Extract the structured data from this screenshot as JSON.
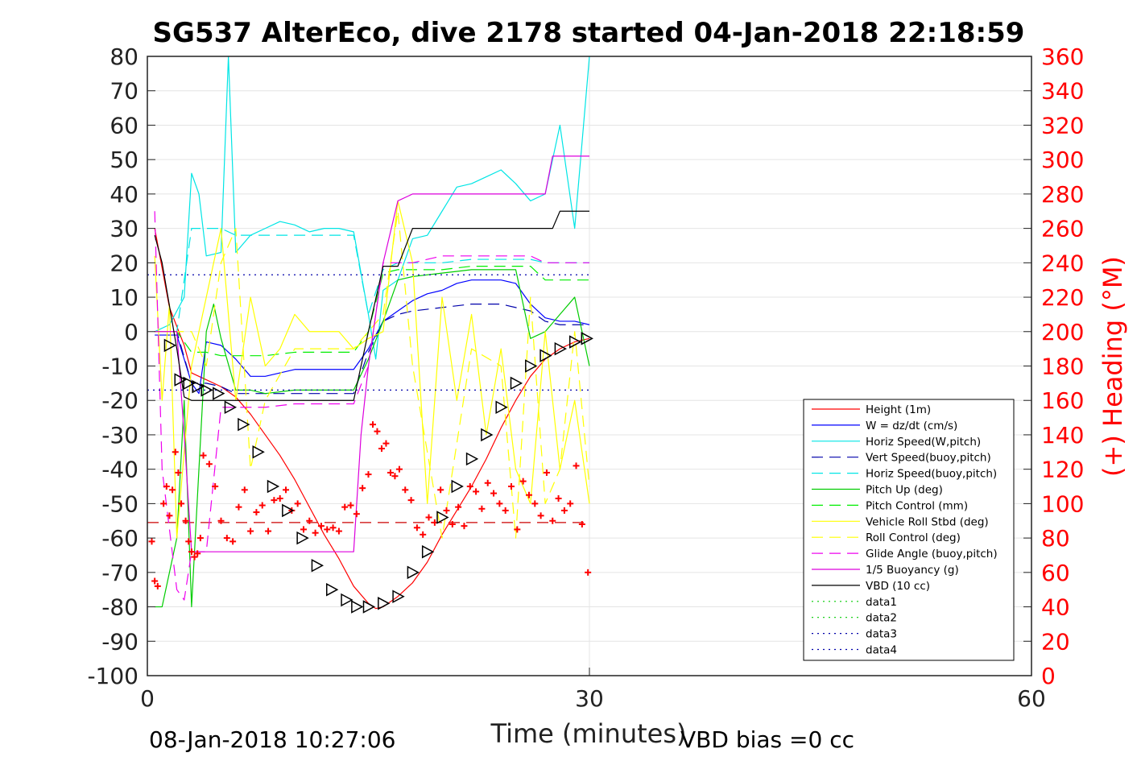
{
  "chart_data": {
    "type": "line",
    "title": "SG537 AlterEco, dive 2178 started 04-Jan-2018 22:18:59",
    "xlabel": "Time (minutes)",
    "ylabel_right": "(+) Heading (°M)",
    "xlim": [
      0,
      60
    ],
    "ylim": [
      -100,
      80
    ],
    "ylim_right": [
      0,
      360
    ],
    "x_ticks": [
      "0",
      "30",
      "60"
    ],
    "y_ticks": [
      "80",
      "70",
      "60",
      "50",
      "40",
      "30",
      "20",
      "10",
      "0",
      "-10",
      "-20",
      "-30",
      "-40",
      "-50",
      "-60",
      "-70",
      "-80",
      "-90",
      "-100"
    ],
    "y_right_ticks": [
      "360",
      "340",
      "320",
      "300",
      "280",
      "260",
      "240",
      "220",
      "200",
      "180",
      "160",
      "140",
      "120",
      "100",
      "80",
      "60",
      "40",
      "20",
      "0"
    ],
    "grid": true,
    "legend_position": "lower-right",
    "footer_left": "08-Jan-2018 10:27:06",
    "footer_right": "VBD bias =0 cc",
    "series": [
      {
        "name": "Height (1m)",
        "color": "#ff0000",
        "style": "solid",
        "x": [
          0.5,
          1.5,
          2.5,
          3,
          4,
          5,
          6,
          7,
          8,
          9,
          10,
          11,
          12,
          13,
          14,
          15,
          15.5,
          16,
          17,
          18,
          19,
          20,
          21,
          22,
          23,
          24,
          25,
          26,
          27,
          28,
          29,
          30
        ],
        "y": [
          30,
          7,
          -4,
          -12,
          -14,
          -16,
          -19,
          -24,
          -30,
          -36,
          -43,
          -51,
          -59,
          -66,
          -74,
          -79,
          -80.5,
          -80,
          -77,
          -73,
          -67,
          -59,
          -52,
          -45,
          -37,
          -28,
          -20,
          -13,
          -8,
          -5,
          -3,
          -2
        ]
      },
      {
        "name": "W = dz/dt (cm/s)",
        "color": "#0000ff",
        "style": "solid",
        "x": [
          0.5,
          2,
          3,
          3.5,
          4,
          5,
          6,
          7,
          8,
          9,
          10,
          11,
          12,
          13,
          14,
          15,
          15.5,
          16,
          17,
          18,
          19,
          20,
          21,
          22,
          23,
          24,
          25,
          26,
          27,
          28,
          29,
          30
        ],
        "y": [
          -1,
          -1,
          -15,
          -18,
          -3,
          -4,
          -8,
          -13,
          -13,
          -12,
          -11,
          -11,
          -11,
          -11,
          -11,
          -5,
          -1,
          3,
          6,
          9,
          11,
          12,
          14,
          15,
          15,
          15,
          14,
          8,
          4,
          3,
          3,
          2
        ]
      },
      {
        "name": "Horiz Speed(W,pitch)",
        "color": "#00e5e5",
        "style": "solid",
        "x": [
          0.5,
          1.5,
          2.5,
          3,
          3.5,
          4,
          5,
          5.5,
          6,
          7,
          8,
          9,
          10,
          11,
          12,
          13,
          14,
          15,
          15.5,
          16,
          17,
          18,
          19,
          20,
          21,
          22,
          23,
          24,
          25,
          26,
          27,
          28,
          29,
          30
        ],
        "y": [
          0,
          2,
          10,
          46,
          40,
          22,
          23,
          80,
          23,
          28,
          30,
          32,
          31,
          29,
          30,
          30,
          29,
          5,
          -8,
          12,
          15,
          27,
          28,
          35,
          42,
          43,
          45,
          47,
          43,
          38,
          40,
          60,
          30,
          80
        ]
      },
      {
        "name": "Vert Speed(buoy,pitch)",
        "color": "#0000aa",
        "style": "dash",
        "x": [
          0.5,
          2,
          3,
          4,
          5,
          6,
          7,
          8,
          10,
          12,
          14,
          15,
          16,
          17,
          18,
          20,
          22,
          24,
          26,
          27,
          28,
          29,
          30
        ],
        "y": [
          0,
          0,
          -15,
          -15,
          -16,
          -18,
          -18,
          -18,
          -18,
          -18,
          -18,
          -6,
          3,
          5,
          6,
          7,
          8,
          8,
          6,
          3,
          2,
          2,
          2
        ]
      },
      {
        "name": "Horiz Speed(buoy,pitch)",
        "color": "#00e5e5",
        "style": "dash",
        "x": [
          0.5,
          2,
          3,
          4,
          5,
          6,
          8,
          10,
          12,
          14,
          15,
          16,
          17,
          18,
          20,
          22,
          24,
          26,
          27,
          28,
          29,
          30
        ],
        "y": [
          0,
          0,
          30,
          30,
          30,
          28,
          28,
          28,
          28,
          28,
          5,
          18,
          20,
          20,
          20,
          21,
          21,
          21,
          20,
          20,
          20,
          20
        ]
      },
      {
        "name": "Pitch Up (deg)",
        "color": "#00cc00",
        "style": "solid",
        "x": [
          0.5,
          1,
          2,
          2.5,
          3,
          4,
          4.5,
          5,
          6,
          7,
          8,
          10,
          12,
          14,
          15,
          16,
          17,
          18,
          20,
          22,
          24,
          25,
          26,
          27,
          28,
          29,
          30
        ],
        "y": [
          -80,
          -80,
          -60,
          -20,
          -80,
          0,
          8,
          -2,
          -17,
          -17,
          -18,
          -17,
          -17,
          -17,
          -8,
          3,
          15,
          16,
          17,
          18,
          18,
          18,
          -2,
          0,
          5,
          10,
          -10
        ]
      },
      {
        "name": "Pitch Control (mm)",
        "color": "#00ee00",
        "style": "dash",
        "x": [
          0.5,
          2,
          3,
          4,
          5,
          6,
          8,
          10,
          12,
          14,
          15,
          16,
          17,
          18,
          20,
          22,
          24,
          26,
          27,
          28,
          29,
          30
        ],
        "y": [
          0,
          0,
          -6,
          -6,
          -7,
          -7,
          -7,
          -6,
          -6,
          -6,
          0,
          17,
          18,
          18,
          18,
          19,
          19,
          19,
          15,
          15,
          15,
          15
        ]
      },
      {
        "name": "Vehicle Roll Stbd (deg)",
        "color": "#ffff00",
        "style": "solid",
        "x": [
          0.5,
          1,
          1.5,
          2,
          3,
          4,
          5,
          6,
          7,
          8,
          9,
          10,
          11,
          12,
          13,
          14,
          15,
          16,
          17,
          18,
          19,
          20,
          21,
          22,
          23,
          24,
          25,
          26,
          27,
          28,
          29,
          30
        ],
        "y": [
          22,
          -20,
          8,
          -60,
          -10,
          10,
          30,
          -20,
          10,
          -10,
          -5,
          5,
          0,
          0,
          0,
          -5,
          -2,
          0,
          38,
          20,
          -50,
          10,
          -20,
          5,
          -30,
          -5,
          -40,
          -50,
          0,
          -40,
          -20,
          -50
        ]
      },
      {
        "name": "Roll Control (deg)",
        "color": "#ffff00",
        "style": "dash",
        "x": [
          0.5,
          2,
          3,
          4,
          5,
          6,
          7,
          8,
          10,
          12,
          14,
          15,
          16,
          17,
          18,
          20,
          22,
          24,
          25,
          26,
          27,
          28,
          29,
          30
        ],
        "y": [
          0,
          0,
          0,
          -10,
          20,
          30,
          -40,
          -20,
          -5,
          -5,
          -5,
          0,
          5,
          35,
          -10,
          -60,
          -5,
          -10,
          -60,
          10,
          -50,
          -40,
          0,
          -45
        ]
      },
      {
        "name": "Glide Angle (buoy,pitch)",
        "color": "#ee00ee",
        "style": "dash",
        "x": [
          0.5,
          1,
          2,
          2.5,
          3,
          4,
          5,
          6,
          7,
          8,
          10,
          12,
          14,
          15,
          16,
          17,
          18,
          20,
          22,
          24,
          26,
          27,
          28,
          29,
          30
        ],
        "y": [
          35,
          -40,
          -75,
          -78,
          -64,
          -64,
          -22,
          -22,
          -22,
          -22,
          -21,
          -21,
          -21,
          -10,
          20,
          20,
          20,
          22,
          22,
          22,
          22,
          20,
          20,
          20,
          20
        ]
      },
      {
        "name": "1/5 Buoyancy (g)",
        "color": "#dd00dd",
        "style": "solid",
        "x": [
          0.5,
          1,
          2,
          2.5,
          3,
          4,
          5,
          6,
          8,
          10,
          12,
          13,
          14,
          14.5,
          15,
          16,
          17,
          18,
          20,
          22,
          24,
          26,
          27,
          27.5,
          28,
          29,
          30
        ],
        "y": [
          0,
          0,
          0,
          -30,
          -64,
          -64,
          -64,
          -64,
          -64,
          -64,
          -64,
          -64,
          -64,
          -30,
          -10,
          20,
          38,
          40,
          40,
          40,
          40,
          40,
          40,
          51,
          51,
          51,
          51
        ]
      },
      {
        "name": "VBD (10 cc)",
        "color": "#000000",
        "style": "solid",
        "x": [
          0.5,
          1,
          2,
          2.5,
          3,
          4,
          5,
          6,
          8,
          10,
          12,
          13,
          14,
          15,
          16,
          17,
          18,
          20,
          22,
          24,
          26,
          27,
          27.5,
          28,
          29,
          30
        ],
        "y": [
          28,
          20,
          -5,
          -19,
          -20,
          -20,
          -20,
          -20,
          -20,
          -20,
          -20,
          -20,
          -20,
          0,
          19,
          19,
          30,
          30,
          30,
          30,
          30,
          30,
          30,
          35,
          35,
          35
        ]
      },
      {
        "name": "data1",
        "color": "#00cc00",
        "style": "dot",
        "x": [],
        "y": []
      },
      {
        "name": "data2",
        "color": "#00cc00",
        "style": "dot",
        "x": [],
        "y": []
      },
      {
        "name": "data3",
        "color": "#0000aa",
        "style": "dot",
        "x": [
          0,
          30
        ],
        "y": [
          16.5,
          16.5
        ]
      },
      {
        "name": "data4",
        "color": "#0000aa",
        "style": "dot",
        "x": [
          0,
          30
        ],
        "y": [
          -17,
          -17
        ]
      }
    ],
    "extra_lines": [
      {
        "color": "#cc0000",
        "style": "dash",
        "x": [
          0,
          30
        ],
        "y": [
          -55.5,
          -55.5
        ]
      }
    ],
    "heading_points": {
      "color": "#ff0000",
      "x": [
        0.3,
        0.5,
        0.7,
        1.1,
        1.3,
        1.5,
        1.7,
        1.9,
        2.1,
        2.3,
        2.6,
        2.8,
        3.0,
        3.2,
        3.4,
        3.6,
        3.8,
        4.2,
        4.6,
        5.0,
        5.4,
        5.8,
        6.2,
        6.6,
        7.0,
        7.4,
        7.8,
        8.2,
        8.6,
        9.0,
        9.4,
        9.8,
        10.2,
        10.6,
        11.0,
        11.4,
        11.8,
        12.2,
        12.6,
        13.0,
        13.4,
        13.8,
        14.2,
        14.6,
        15.0,
        15.3,
        15.6,
        15.9,
        16.2,
        16.5,
        16.8,
        17.1,
        17.5,
        17.9,
        18.3,
        18.7,
        19.1,
        19.5,
        19.9,
        20.3,
        20.7,
        21.1,
        21.5,
        21.9,
        22.3,
        22.7,
        23.1,
        23.5,
        23.9,
        24.3,
        24.7,
        25.1,
        25.5,
        25.9,
        26.3,
        26.7,
        27.1,
        27.5,
        27.9,
        28.3,
        28.7,
        29.1,
        29.5,
        29.9
      ],
      "y": [
        78,
        55,
        52,
        100,
        110,
        93,
        108,
        130,
        118,
        100,
        90,
        78,
        72,
        69,
        71,
        80,
        128,
        123,
        110,
        90,
        80,
        78,
        98,
        108,
        84,
        95,
        99,
        84,
        102,
        103,
        108,
        96,
        100,
        85,
        90,
        83,
        87,
        85,
        86,
        84,
        98,
        99,
        94,
        109,
        117,
        146,
        142,
        132,
        135,
        118,
        116,
        120,
        108,
        102,
        86,
        82,
        92,
        89,
        108,
        96,
        88,
        98,
        87,
        110,
        107,
        97,
        112,
        106,
        100,
        96,
        110,
        85,
        113,
        105,
        100,
        93,
        118,
        90,
        103,
        96,
        100,
        122,
        88,
        60
      ]
    },
    "dive_points": {
      "color": "#000000",
      "x": [
        1.5,
        2.2,
        2.8,
        3.4,
        4.0,
        4.8,
        5.6,
        6.5,
        7.5,
        8.5,
        9.5,
        10.5,
        11.5,
        12.5,
        13.5,
        14.2,
        15.0,
        16.0,
        17.0,
        18.0,
        19.0,
        20.0,
        21.0,
        22.0,
        23.0,
        24.0,
        25.0,
        26.0,
        27.0,
        28.0,
        29.0,
        29.8
      ],
      "y": [
        -4,
        -14,
        -15,
        -16,
        -17,
        -18,
        -22,
        -27,
        -35,
        -45,
        -52,
        -60,
        -68,
        -75,
        -78,
        -80,
        -80,
        -79,
        -77,
        -70,
        -64,
        -54,
        -45,
        -37,
        -30,
        -22,
        -15,
        -10,
        -7,
        -5,
        -3,
        -2
      ]
    }
  }
}
